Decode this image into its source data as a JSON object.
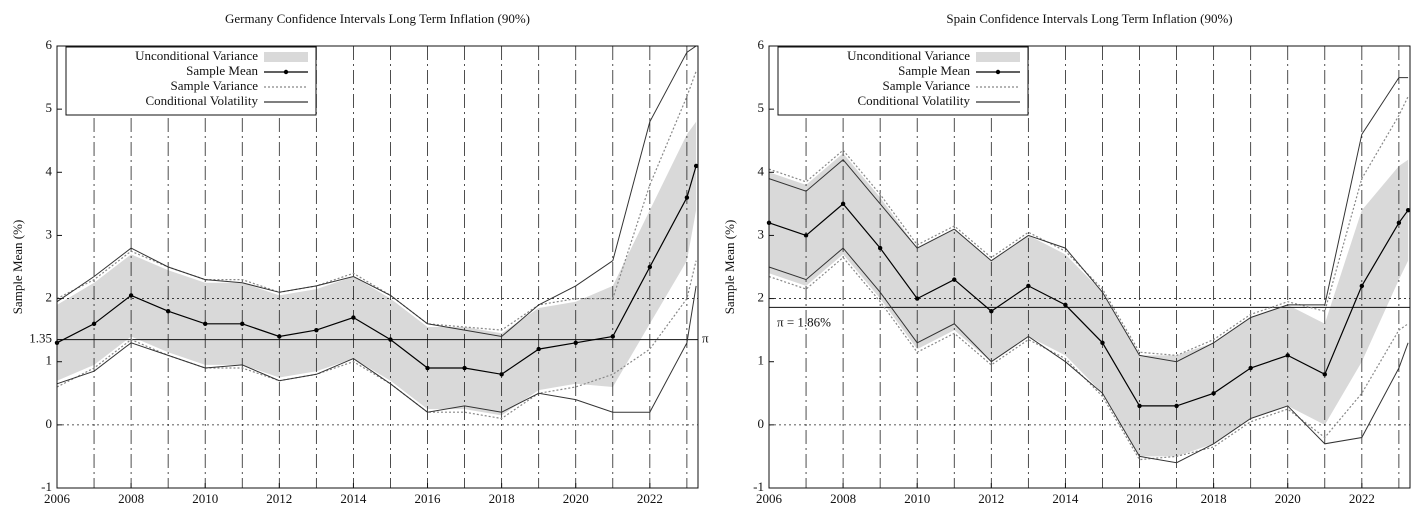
{
  "chart_data": [
    {
      "type": "line",
      "title": "Germany Confidence Intervals Long Term Inflation (90%)",
      "ylabel": "Sample Mean (%)",
      "x": [
        2006,
        2007,
        2008,
        2009,
        2010,
        2011,
        2012,
        2013,
        2014,
        2015,
        2016,
        2017,
        2018,
        2019,
        2020,
        2021,
        2022,
        2023,
        2023.25
      ],
      "xlim": [
        2006,
        2023.3
      ],
      "xticks": [
        2006,
        2008,
        2010,
        2012,
        2014,
        2016,
        2018,
        2020,
        2022
      ],
      "ylim": [
        -1,
        6
      ],
      "yticks": [
        -1,
        0,
        1,
        1.35,
        2,
        3,
        4,
        5,
        6
      ],
      "vlines": [
        2007,
        2008,
        2009,
        2010,
        2011,
        2012,
        2013,
        2014,
        2015,
        2016,
        2017,
        2018,
        2019,
        2020,
        2021,
        2022,
        2023
      ],
      "hlines": [
        0,
        2
      ],
      "reference_line": 1.35,
      "reference_label": "π",
      "legend": "upper-left",
      "series": [
        {
          "name": "Unconditional Variance",
          "color": "#d9d9d9",
          "style": "band",
          "upper": [
            1.9,
            2.25,
            2.7,
            2.45,
            2.25,
            2.25,
            2.05,
            2.15,
            2.35,
            2.0,
            1.55,
            1.55,
            1.45,
            1.85,
            1.95,
            2.2,
            3.4,
            4.6,
            4.8
          ],
          "lower": [
            0.7,
            0.95,
            1.4,
            1.15,
            0.95,
            0.95,
            0.75,
            0.85,
            1.05,
            0.7,
            0.25,
            0.25,
            0.15,
            0.55,
            0.65,
            0.6,
            1.6,
            2.6,
            3.4
          ]
        },
        {
          "name": "Sample Mean",
          "color": "#000000",
          "style": "markers",
          "values": [
            1.3,
            1.6,
            2.05,
            1.8,
            1.6,
            1.6,
            1.4,
            1.5,
            1.7,
            1.35,
            0.9,
            0.9,
            0.8,
            1.2,
            1.3,
            1.4,
            2.5,
            3.6,
            4.1
          ]
        },
        {
          "name": "Sample Variance",
          "color": "#888888",
          "style": "dotted",
          "upper": [
            2.0,
            2.3,
            2.75,
            2.5,
            2.3,
            2.3,
            2.1,
            2.2,
            2.4,
            2.05,
            1.6,
            1.55,
            1.5,
            1.9,
            2.0,
            2.0,
            3.8,
            5.2,
            5.6
          ],
          "lower": [
            0.6,
            0.9,
            1.35,
            1.1,
            0.9,
            0.9,
            0.7,
            0.8,
            1.0,
            0.65,
            0.2,
            0.2,
            0.1,
            0.5,
            0.6,
            0.8,
            1.2,
            2.0,
            2.6
          ]
        },
        {
          "name": "Conditional Volatility",
          "color": "#333333",
          "style": "solid",
          "upper": [
            1.95,
            2.35,
            2.8,
            2.5,
            2.3,
            2.25,
            2.1,
            2.2,
            2.35,
            2.05,
            1.6,
            1.5,
            1.4,
            1.9,
            2.2,
            2.6,
            4.8,
            5.9,
            6.0
          ],
          "lower": [
            0.65,
            0.85,
            1.3,
            1.1,
            0.9,
            0.95,
            0.7,
            0.8,
            1.05,
            0.65,
            0.2,
            0.3,
            0.2,
            0.5,
            0.4,
            0.2,
            0.2,
            1.3,
            2.2
          ]
        }
      ]
    },
    {
      "type": "line",
      "title": "Spain Confidence Intervals Long Term Inflation (90%)",
      "ylabel": "Sample Mean (%)",
      "x": [
        2006,
        2007,
        2008,
        2009,
        2010,
        2011,
        2012,
        2013,
        2014,
        2015,
        2016,
        2017,
        2018,
        2019,
        2020,
        2021,
        2022,
        2023,
        2023.25
      ],
      "xlim": [
        2006,
        2023.3
      ],
      "xticks": [
        2006,
        2008,
        2010,
        2012,
        2014,
        2016,
        2018,
        2020,
        2022
      ],
      "ylim": [
        -1,
        6
      ],
      "yticks": [
        -1,
        0,
        1,
        2,
        3,
        4,
        5,
        6
      ],
      "vlines": [
        2007,
        2008,
        2009,
        2010,
        2011,
        2012,
        2013,
        2014,
        2015,
        2016,
        2017,
        2018,
        2019,
        2020,
        2021,
        2022,
        2023
      ],
      "hlines": [
        0,
        2
      ],
      "reference_line": 1.86,
      "reference_label": "π = 1.86%",
      "legend": "upper-left",
      "series": [
        {
          "name": "Unconditional Variance",
          "color": "#d9d9d9",
          "style": "band",
          "upper": [
            4.0,
            3.8,
            4.3,
            3.6,
            2.8,
            3.1,
            2.6,
            3.0,
            2.7,
            2.1,
            1.1,
            1.1,
            1.3,
            1.7,
            1.9,
            1.6,
            3.4,
            4.1,
            4.2
          ],
          "lower": [
            2.4,
            2.2,
            2.7,
            2.0,
            1.2,
            1.5,
            1.0,
            1.4,
            1.1,
            0.5,
            -0.5,
            -0.5,
            -0.3,
            0.1,
            0.3,
            0.0,
            1.0,
            2.3,
            2.6
          ]
        },
        {
          "name": "Sample Mean",
          "color": "#000000",
          "style": "markers",
          "values": [
            3.2,
            3.0,
            3.5,
            2.8,
            2.0,
            2.3,
            1.8,
            2.2,
            1.9,
            1.3,
            0.3,
            0.3,
            0.5,
            0.9,
            1.1,
            0.8,
            2.2,
            3.2,
            3.4
          ]
        },
        {
          "name": "Sample Variance",
          "color": "#888888",
          "style": "dotted",
          "upper": [
            4.05,
            3.85,
            4.35,
            3.65,
            2.85,
            3.15,
            2.65,
            3.05,
            2.75,
            2.15,
            1.15,
            1.1,
            1.35,
            1.75,
            1.95,
            1.8,
            3.9,
            4.9,
            5.2
          ],
          "lower": [
            2.35,
            2.15,
            2.65,
            1.95,
            1.15,
            1.45,
            0.95,
            1.35,
            1.05,
            0.45,
            -0.55,
            -0.5,
            -0.35,
            0.05,
            0.25,
            -0.2,
            0.5,
            1.5,
            1.6
          ]
        },
        {
          "name": "Conditional Volatility",
          "color": "#333333",
          "style": "solid",
          "upper": [
            3.9,
            3.7,
            4.2,
            3.5,
            2.8,
            3.1,
            2.6,
            3.0,
            2.8,
            2.1,
            1.1,
            1.0,
            1.3,
            1.7,
            1.9,
            1.9,
            4.6,
            5.5,
            5.5
          ],
          "lower": [
            2.5,
            2.3,
            2.8,
            2.1,
            1.3,
            1.6,
            1.0,
            1.4,
            1.0,
            0.5,
            -0.5,
            -0.6,
            -0.3,
            0.1,
            0.3,
            -0.3,
            -0.2,
            0.9,
            1.3
          ]
        }
      ]
    }
  ]
}
